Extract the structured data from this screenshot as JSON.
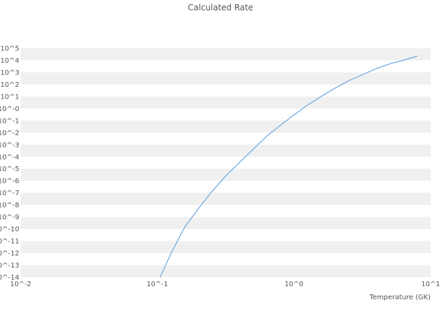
{
  "colors": {
    "line": "#6aa7e0",
    "band": "#f0f0f0",
    "text": "#555555"
  },
  "chart_data": {
    "type": "line",
    "title": "Calculated Rate",
    "xlabel": "Temperature (GK)",
    "ylabel": "",
    "x_scale": "log",
    "y_scale": "log",
    "xlim_log": [
      -2,
      1
    ],
    "ylim_log": [
      -14,
      5
    ],
    "grid": "horizontal-bands",
    "legend": false,
    "x_tick_log": [
      -2,
      -1,
      0,
      1
    ],
    "x_tick_labels": [
      "10^-2",
      "10^-1",
      "10^0",
      "10^1"
    ],
    "y_tick_log": [
      5,
      4,
      3,
      2,
      1,
      0,
      -1,
      -2,
      -3,
      -4,
      -5,
      -6,
      -7,
      -8,
      -9,
      -10,
      -11,
      -12,
      -13,
      -14
    ],
    "y_tick_labels": [
      "10^5",
      "10^4",
      "10^3",
      "10^2",
      "10^1",
      "10^-0",
      "10^-1",
      "10^-2",
      "10^-3",
      "10^-4",
      "10^-5",
      "10^-6",
      "10^-7",
      "10^-8",
      "10^-9",
      "10^-10",
      "10^-11",
      "10^-12",
      "10^-13",
      "10^-14"
    ],
    "series": [
      {
        "name": "calculated-rate",
        "x": [
          0.105,
          0.126,
          0.158,
          0.2,
          0.251,
          0.316,
          0.398,
          0.501,
          0.631,
          0.794,
          1.0,
          1.26,
          1.58,
          2.0,
          2.51,
          3.16,
          3.98,
          5.01,
          6.31,
          7.94
        ],
        "y": [
          1e-14,
          1e-12,
          1.3e-10,
          5e-09,
          1.3e-07,
          2.5e-06,
          3.2e-05,
          0.0004,
          0.005,
          0.04,
          0.3,
          2,
          10,
          50,
          200,
          630,
          2000,
          5000,
          10000,
          22000
        ]
      }
    ]
  }
}
